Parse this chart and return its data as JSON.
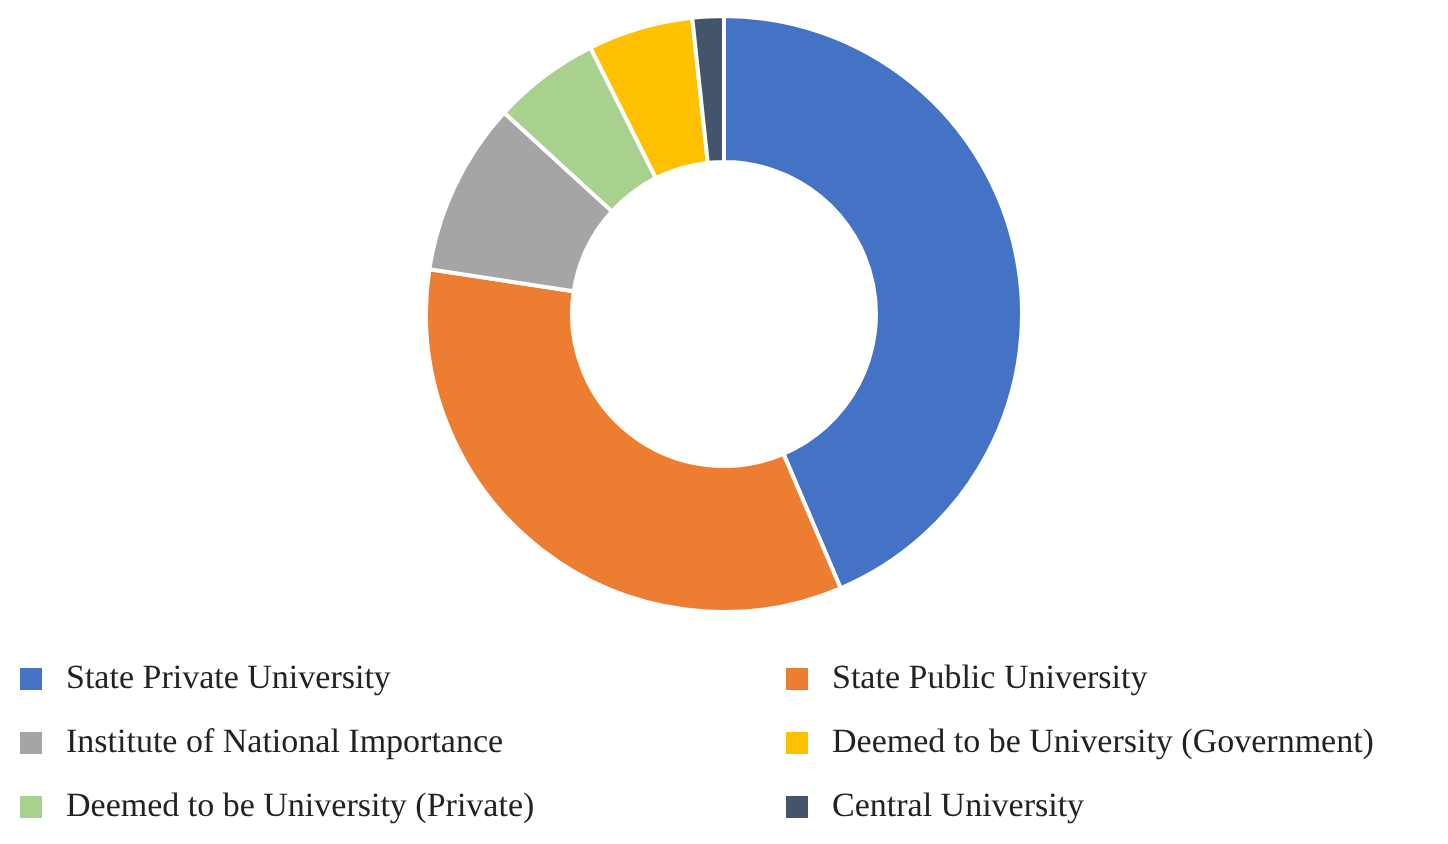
{
  "chart_data": {
    "type": "donut",
    "categories": [
      "State Private University",
      "State Public University",
      "Institute of National Importance",
      "Deemed to be University (Government)",
      "Deemed to be University (Private)",
      "Central University"
    ],
    "values": [
      43.6,
      33.8,
      9.4,
      5.7,
      5.8,
      1.7
    ],
    "colors": [
      "#4472c4",
      "#ed7d31",
      "#a5a5a5",
      "#ffc000",
      "#a9d18e",
      "#44546a"
    ],
    "legend": "bottom"
  }
}
